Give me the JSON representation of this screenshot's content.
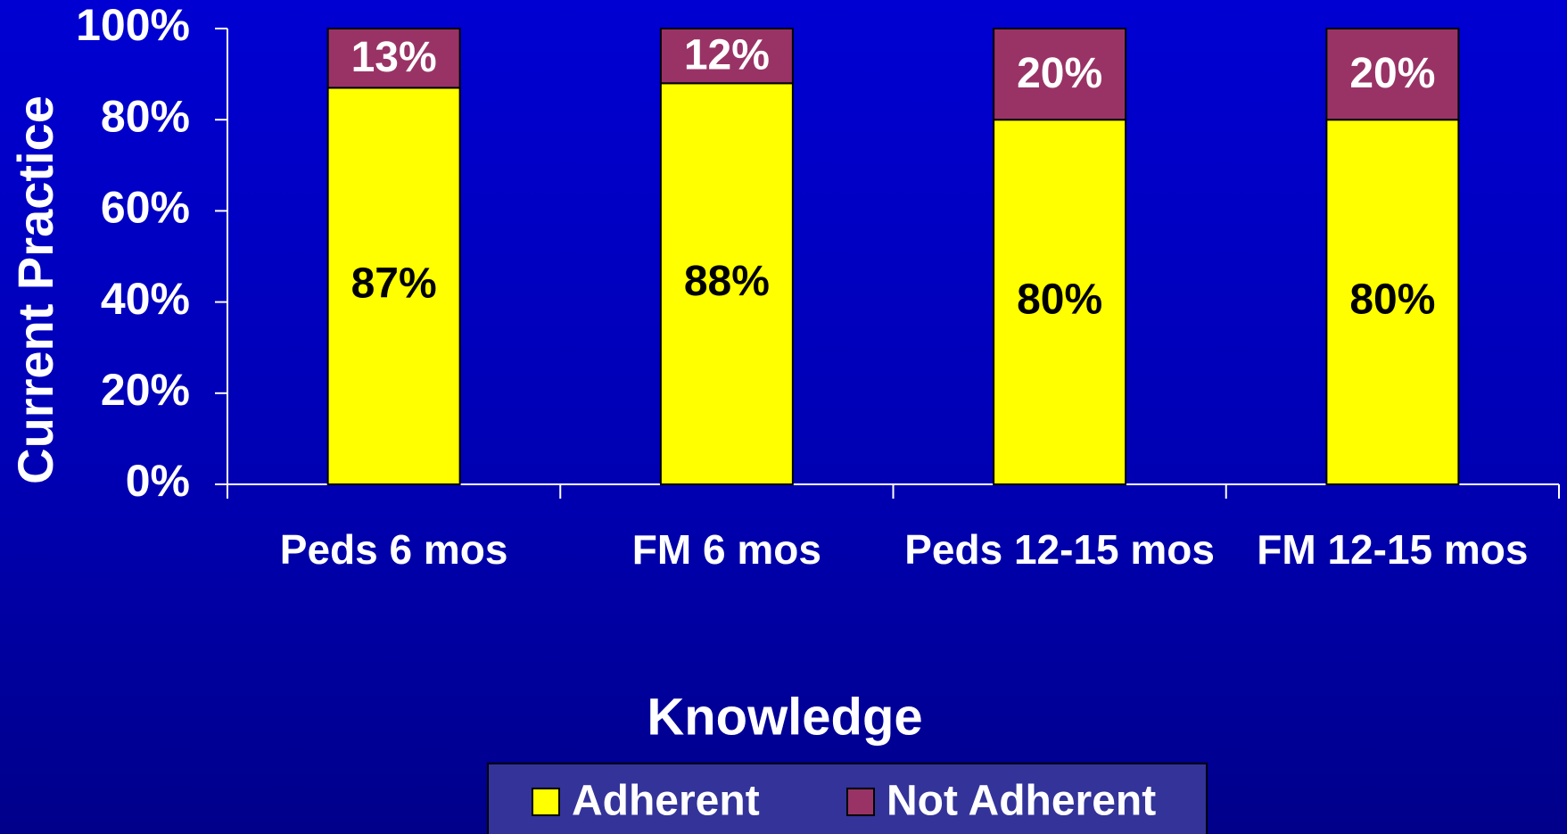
{
  "chart_data": {
    "type": "stacked_bar",
    "x_label": "Knowledge",
    "y_label": "Current Practice",
    "categories": [
      "Peds 6 mos",
      "FM 6 mos",
      "Peds 12-15 mos",
      "FM 12-15 mos"
    ],
    "series": [
      {
        "name": "Adherent",
        "color": "#ffff00",
        "values": [
          87,
          88,
          80,
          80
        ],
        "value_labels": [
          "87%",
          "88%",
          "80%",
          "80%"
        ]
      },
      {
        "name": "Not Adherent",
        "color": "#993366",
        "values": [
          13,
          12,
          20,
          20
        ],
        "value_labels": [
          "13%",
          "12%",
          "20%",
          "20%"
        ]
      }
    ],
    "ylim": [
      0,
      100
    ],
    "yticks": [
      {
        "value": 0,
        "label": "0%"
      },
      {
        "value": 20,
        "label": "20%"
      },
      {
        "value": 40,
        "label": "40%"
      },
      {
        "value": 60,
        "label": "60%"
      },
      {
        "value": 80,
        "label": "80%"
      },
      {
        "value": 100,
        "label": "100%"
      }
    ],
    "legend": "bottom"
  }
}
